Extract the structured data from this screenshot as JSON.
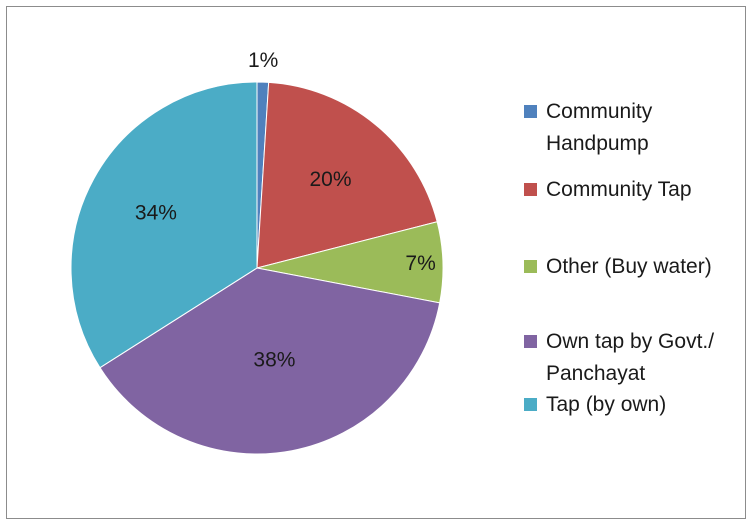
{
  "chart_data": {
    "type": "pie",
    "title": "",
    "series": [
      {
        "label": "Community Handpump",
        "value": 1,
        "display": "1%",
        "color": "#4f81bd"
      },
      {
        "label": "Community Tap",
        "value": 20,
        "display": "20%",
        "color": "#c0504d"
      },
      {
        "label": "Other (Buy water)",
        "value": 7,
        "display": "7%",
        "color": "#9bbb59"
      },
      {
        "label": "Own tap by Govt./\nPanchayat",
        "value": 38,
        "display": "38%",
        "color": "#8064a2"
      },
      {
        "label": "Tap (by own)",
        "value": 34,
        "display": "34%",
        "color": "#4bacc6"
      }
    ],
    "legend_position": "right"
  }
}
